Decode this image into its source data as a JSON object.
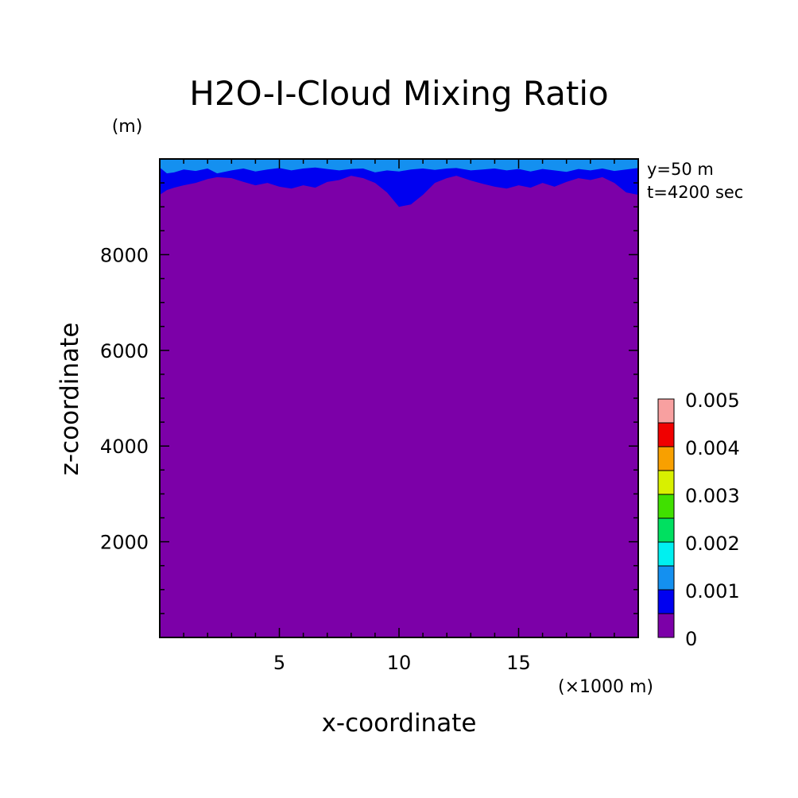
{
  "chart_data": {
    "type": "heatmap",
    "title": "H2O-I-Cloud Mixing Ratio",
    "xlabel": "x-coordinate",
    "ylabel": "z-coordinate",
    "x_unit": "(×1000 m)",
    "y_unit": "(m)",
    "info_lines": [
      "y=50 m",
      "t=4200 sec"
    ],
    "xlim": [
      0,
      20
    ],
    "ylim": [
      0,
      10000
    ],
    "xticks": [
      5,
      10,
      15
    ],
    "yticks": [
      2000,
      4000,
      6000,
      8000
    ],
    "grid": false,
    "colorbar": {
      "levels": [
        0,
        0.0005,
        0.001,
        0.0015,
        0.002,
        0.0025,
        0.003,
        0.0035,
        0.004,
        0.0045,
        0.005
      ],
      "colors": [
        "#7c00a8",
        "#0000f0",
        "#1490f0",
        "#00f0f0",
        "#00e060",
        "#40e000",
        "#d8f000",
        "#f8a000",
        "#f00000",
        "#f8a0a0"
      ],
      "tick_labels": [
        "0",
        "0.001",
        "0.002",
        "0.003",
        "0.004",
        "0.005"
      ]
    },
    "band_boundaries": {
      "x": [
        0,
        0.3,
        0.6,
        1,
        1.5,
        2,
        2.4,
        3,
        3.5,
        4,
        4.5,
        5,
        5.5,
        6,
        6.5,
        7,
        7.5,
        8,
        8.5,
        9,
        9.5,
        10,
        10.5,
        11,
        11.5,
        12,
        12.4,
        13,
        13.5,
        14,
        14.5,
        15,
        15.5,
        16,
        16.5,
        17,
        17.5,
        18,
        18.5,
        19,
        19.5,
        20
      ],
      "z_top_of_0_band": [
        9250,
        9350,
        9400,
        9450,
        9500,
        9580,
        9620,
        9600,
        9520,
        9450,
        9500,
        9420,
        9380,
        9450,
        9400,
        9520,
        9560,
        9650,
        9600,
        9500,
        9300,
        9000,
        9050,
        9250,
        9500,
        9600,
        9650,
        9550,
        9480,
        9420,
        9380,
        9450,
        9400,
        9500,
        9420,
        9520,
        9600,
        9560,
        9620,
        9500,
        9300,
        9250
      ],
      "z_top_of_0.0005_band": [
        9820,
        9700,
        9720,
        9780,
        9750,
        9800,
        9700,
        9760,
        9800,
        9740,
        9780,
        9810,
        9760,
        9800,
        9820,
        9790,
        9760,
        9790,
        9800,
        9720,
        9760,
        9740,
        9780,
        9800,
        9770,
        9800,
        9810,
        9760,
        9780,
        9800,
        9760,
        9790,
        9740,
        9790,
        9760,
        9730,
        9790,
        9760,
        9800,
        9750,
        9780,
        9810
      ]
    }
  }
}
